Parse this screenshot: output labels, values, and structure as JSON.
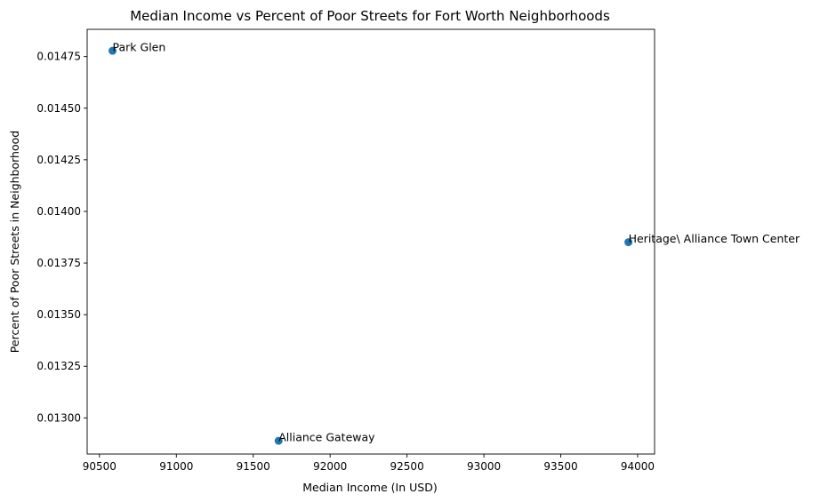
{
  "chart_data": {
    "type": "scatter",
    "title": "Median Income vs Percent of Poor Streets for Fort Worth Neighborhoods",
    "xlabel": "Median Income (In USD)",
    "ylabel": "Percent of Poor Streets in Neighborhood",
    "xlim": [
      90420,
      94110
    ],
    "ylim": [
      0.012825,
      0.014882
    ],
    "xticks": [
      90500,
      91000,
      91500,
      92000,
      92500,
      93000,
      93500,
      94000
    ],
    "xtick_labels": [
      "90500",
      "91000",
      "91500",
      "92000",
      "92500",
      "93000",
      "93500",
      "94000"
    ],
    "yticks": [
      0.013,
      0.01325,
      0.0135,
      0.01375,
      0.014,
      0.01425,
      0.0145,
      0.01475
    ],
    "ytick_labels": [
      "0.01300",
      "0.01325",
      "0.01350",
      "0.01375",
      "0.01400",
      "0.01425",
      "0.01450",
      "0.01475"
    ],
    "points": [
      {
        "label": "Park Glen",
        "x": 90585,
        "y": 0.014778
      },
      {
        "label": "Heritage\\ Alliance Town Center",
        "x": 93940,
        "y": 0.013851
      },
      {
        "label": "Alliance Gateway",
        "x": 91665,
        "y": 0.012889
      }
    ],
    "marker_color": "#1f77b4",
    "grid": false
  }
}
